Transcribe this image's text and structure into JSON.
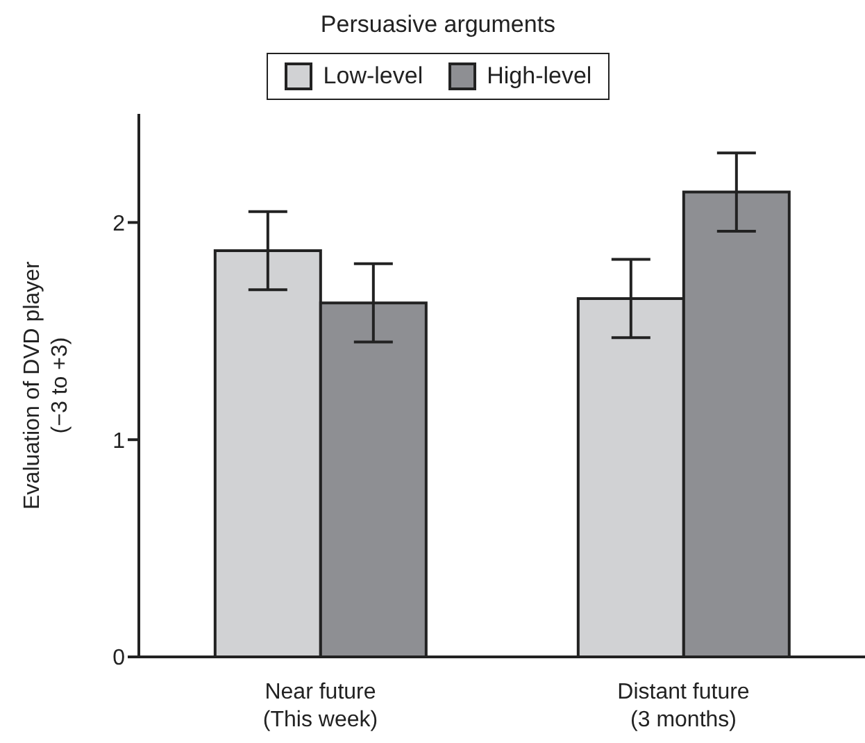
{
  "chart_data": {
    "type": "bar",
    "legend_title": "Persuasive arguments",
    "ylabel": "Evaluation of DVD player\n(−3 to +3)",
    "categories": [
      "Near future\n(This week)",
      "Distant future\n(3 months)"
    ],
    "series": [
      {
        "name": "Low-level",
        "color": "#d1d2d4",
        "values": [
          1.87,
          1.65
        ],
        "errors": [
          0.18,
          0.18
        ]
      },
      {
        "name": "High-level",
        "color": "#8e8f93",
        "values": [
          1.63,
          2.14
        ],
        "errors": [
          0.18,
          0.18
        ]
      }
    ],
    "ylim": [
      0,
      2.5
    ],
    "yticks": [
      0,
      1,
      2
    ],
    "grid": false,
    "legend": "top"
  }
}
